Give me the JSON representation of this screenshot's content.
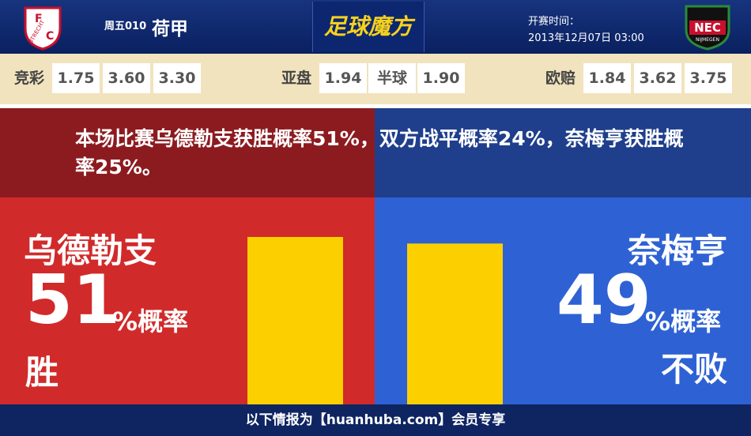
{
  "header": {
    "match_no": "周五010",
    "league": "荷甲",
    "brand": "足球魔方",
    "kickoff_label": "开赛时间：",
    "kickoff_time": "2013年12月07日 03:00",
    "home_logo": [
      "F",
      "C",
      "UTRECHT"
    ],
    "away_logo": [
      "NEC",
      "NIJMEGEN"
    ]
  },
  "odds": [
    {
      "label": "竞彩",
      "values": [
        "1.75",
        "3.60",
        "3.30"
      ]
    },
    {
      "label": "亚盘",
      "values": [
        "1.94",
        "半球",
        "1.90"
      ]
    },
    {
      "label": "欧赔",
      "values": [
        "1.84",
        "3.62",
        "3.75"
      ]
    }
  ],
  "summary": "本场比赛乌德勒支获胜概率51%，双方战平概率24%，奈梅亨获胜概率25%。",
  "home": {
    "name": "乌德勒支",
    "probability": 51,
    "unit": "%概率",
    "outcome": "胜"
  },
  "away": {
    "name": "奈梅亨",
    "probability": 49,
    "unit": "%概率",
    "outcome": "不败"
  },
  "footer": "以下情报为【huanhuba.com】会员专享"
}
